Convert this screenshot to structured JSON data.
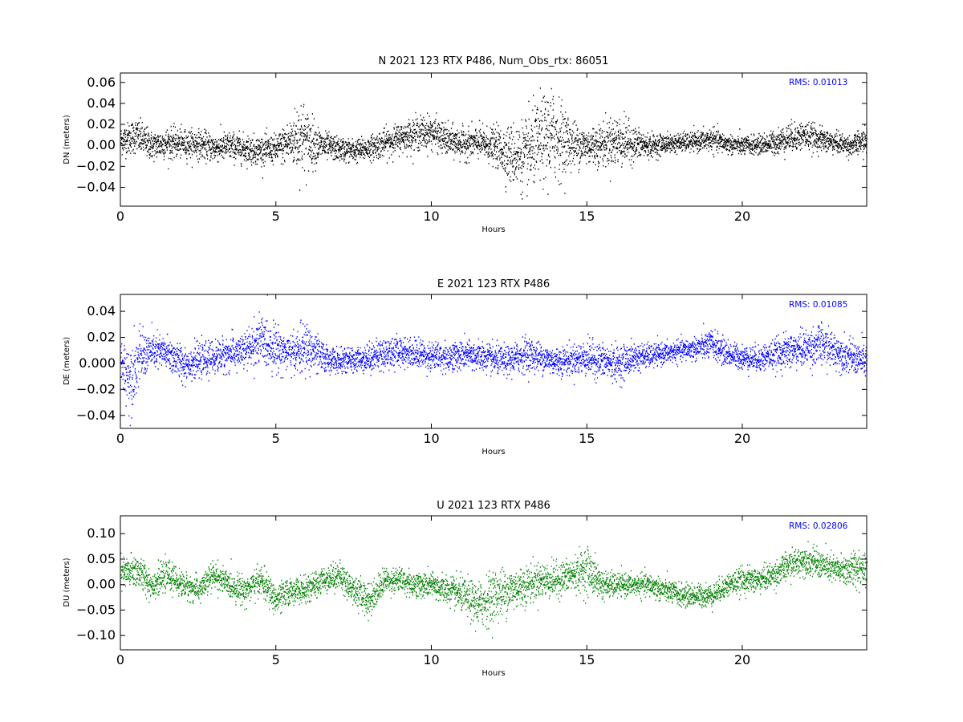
{
  "chart_data": [
    {
      "type": "scatter",
      "title": "N 2021 123 RTX  P486, Num_Obs_rtx: 86051",
      "xlabel": "Hours",
      "ylabel": "DN (meters)",
      "xlim": [
        0,
        24
      ],
      "ylim": [
        -0.058,
        0.069
      ],
      "x_ticks": [
        0,
        5,
        10,
        15,
        20
      ],
      "y_ticks": [
        -0.04,
        -0.02,
        0.0,
        0.02,
        0.04,
        0.06
      ],
      "y_tick_labels": [
        "−0.04",
        "−0.02",
        "0.00",
        "0.02",
        "0.04",
        "0.06"
      ],
      "annotation": "RMS:  0.01013",
      "annotation_color": "#0000ff",
      "color": "#000000",
      "grid": false,
      "series": [
        {
          "x": [
            0,
            0.5,
            1,
            1.5,
            2,
            2.5,
            3,
            3.5,
            4,
            4.5,
            5,
            5.5,
            5.8,
            6,
            6.5,
            7,
            7.5,
            8,
            8.5,
            9,
            9.5,
            10,
            10.5,
            11,
            11.5,
            12,
            12.5,
            13,
            13.5,
            13.9,
            14.5,
            15,
            15.5,
            16,
            16.5,
            17,
            17.5,
            18,
            18.5,
            19,
            19.5,
            20,
            20.5,
            21,
            21.5,
            22,
            22.5,
            23,
            23.5,
            24
          ],
          "center": [
            0.005,
            0.01,
            0.0,
            0.003,
            0.002,
            0.002,
            -0.002,
            0.0,
            -0.003,
            -0.004,
            -0.003,
            0.005,
            0.01,
            0.005,
            0.0,
            -0.003,
            -0.005,
            -0.002,
            0.003,
            0.008,
            0.012,
            0.013,
            0.005,
            0.002,
            0.003,
            0.0,
            -0.008,
            -0.01,
            0.005,
            0.01,
            0.002,
            0.0,
            0.002,
            0.005,
            0.002,
            0.0,
            0.002,
            0.003,
            0.004,
            0.006,
            0.002,
            0.0,
            0.001,
            0.003,
            0.008,
            0.01,
            0.006,
            0.003,
            0.0,
            0.006
          ],
          "spread": [
            0.012,
            0.015,
            0.012,
            0.013,
            0.012,
            0.012,
            0.012,
            0.012,
            0.012,
            0.012,
            0.012,
            0.02,
            0.035,
            0.025,
            0.012,
            0.01,
            0.01,
            0.01,
            0.012,
            0.012,
            0.014,
            0.014,
            0.013,
            0.013,
            0.013,
            0.015,
            0.025,
            0.03,
            0.035,
            0.04,
            0.02,
            0.016,
            0.018,
            0.022,
            0.015,
            0.01,
            0.008,
            0.008,
            0.008,
            0.01,
            0.008,
            0.008,
            0.008,
            0.01,
            0.012,
            0.012,
            0.01,
            0.009,
            0.008,
            0.012
          ]
        }
      ]
    },
    {
      "type": "scatter",
      "title": "E 2021 123 RTX  P486",
      "xlabel": "Hours",
      "ylabel": "DE (meters)",
      "xlim": [
        0,
        24
      ],
      "ylim": [
        -0.05,
        0.053
      ],
      "x_ticks": [
        0,
        5,
        10,
        15,
        20
      ],
      "y_ticks": [
        -0.04,
        -0.02,
        0.0,
        0.02,
        0.04
      ],
      "y_tick_labels": [
        "−0.04",
        "−0.02",
        "0.000",
        "0.02",
        "0.04"
      ],
      "annotation": "RMS:  0.01085",
      "annotation_color": "#0000ff",
      "color": "#0000ff",
      "grid": false,
      "series": [
        {
          "x": [
            0,
            0.3,
            0.6,
            1,
            1.5,
            2,
            2.5,
            3,
            3.5,
            4,
            4.5,
            5,
            5.5,
            6,
            6.5,
            7,
            7.5,
            8,
            8.5,
            9,
            9.5,
            10,
            10.5,
            11,
            11.5,
            12,
            12.5,
            13,
            13.5,
            14,
            14.5,
            15,
            15.5,
            16,
            16.5,
            17,
            17.5,
            18,
            18.5,
            19,
            19.5,
            20,
            20.5,
            21,
            21.5,
            22,
            22.5,
            23,
            23.5,
            24
          ],
          "center": [
            0.0,
            -0.01,
            0.005,
            0.01,
            0.008,
            0.0,
            0.002,
            0.005,
            0.008,
            0.01,
            0.018,
            0.012,
            0.008,
            0.012,
            0.005,
            0.002,
            0.003,
            0.005,
            0.008,
            0.01,
            0.008,
            0.006,
            0.005,
            0.007,
            0.006,
            0.003,
            0.002,
            0.008,
            0.005,
            0.002,
            0.003,
            0.005,
            0.002,
            0.0,
            0.005,
            0.006,
            0.008,
            0.01,
            0.012,
            0.015,
            0.008,
            0.005,
            0.004,
            0.007,
            0.01,
            0.012,
            0.015,
            0.01,
            0.005,
            0.002
          ],
          "spread": [
            0.015,
            0.025,
            0.018,
            0.012,
            0.012,
            0.012,
            0.011,
            0.011,
            0.012,
            0.012,
            0.018,
            0.015,
            0.012,
            0.018,
            0.01,
            0.008,
            0.008,
            0.01,
            0.011,
            0.01,
            0.01,
            0.01,
            0.01,
            0.01,
            0.01,
            0.01,
            0.01,
            0.012,
            0.01,
            0.01,
            0.01,
            0.012,
            0.012,
            0.012,
            0.01,
            0.008,
            0.007,
            0.007,
            0.008,
            0.01,
            0.009,
            0.008,
            0.009,
            0.01,
            0.012,
            0.012,
            0.014,
            0.012,
            0.011,
            0.012
          ]
        }
      ]
    },
    {
      "type": "scatter",
      "title": "U 2021 123 RTX  P486",
      "xlabel": "Hours",
      "ylabel": "DU (meters)",
      "xlim": [
        0,
        24
      ],
      "ylim": [
        -0.128,
        0.135
      ],
      "x_ticks": [
        0,
        5,
        10,
        15,
        20
      ],
      "y_ticks": [
        -0.1,
        -0.05,
        0.0,
        0.05,
        0.1
      ],
      "y_tick_labels": [
        "−0.10",
        "−0.05",
        "0.00",
        "0.05",
        "0.10"
      ],
      "annotation": "RMS:  0.02806",
      "annotation_color": "#0000ff",
      "color": "#008000",
      "grid": false,
      "series": [
        {
          "x": [
            0,
            0.5,
            1,
            1.5,
            2,
            2.5,
            3,
            3.5,
            4,
            4.5,
            5,
            5.5,
            6,
            6.5,
            7,
            7.5,
            8,
            8.5,
            9,
            9.5,
            10,
            10.5,
            11,
            11.5,
            12,
            12.5,
            13,
            13.5,
            14,
            14.5,
            15,
            15.5,
            16,
            16.5,
            17,
            17.5,
            18,
            18.5,
            19,
            19.5,
            20,
            20.5,
            21,
            21.5,
            22,
            22.5,
            23,
            23.5,
            24
          ],
          "center": [
            0.02,
            0.03,
            0.0,
            0.02,
            0.0,
            -0.01,
            0.02,
            0.0,
            -0.01,
            0.01,
            -0.03,
            -0.01,
            -0.01,
            0.01,
            0.02,
            -0.01,
            -0.03,
            0.01,
            0.01,
            0.0,
            0.0,
            -0.01,
            -0.02,
            -0.04,
            -0.02,
            -0.01,
            0.0,
            0.01,
            0.01,
            0.02,
            0.03,
            0.0,
            0.0,
            0.0,
            0.0,
            -0.01,
            -0.02,
            -0.02,
            -0.02,
            0.0,
            0.01,
            0.01,
            0.02,
            0.04,
            0.05,
            0.04,
            0.03,
            0.03,
            0.04
          ],
          "spread": [
            0.03,
            0.03,
            0.025,
            0.025,
            0.022,
            0.022,
            0.025,
            0.022,
            0.025,
            0.025,
            0.028,
            0.022,
            0.022,
            0.022,
            0.025,
            0.025,
            0.03,
            0.022,
            0.022,
            0.022,
            0.022,
            0.025,
            0.03,
            0.04,
            0.045,
            0.04,
            0.035,
            0.03,
            0.03,
            0.03,
            0.04,
            0.025,
            0.02,
            0.018,
            0.02,
            0.02,
            0.02,
            0.02,
            0.02,
            0.02,
            0.022,
            0.022,
            0.022,
            0.025,
            0.025,
            0.025,
            0.025,
            0.03,
            0.035
          ]
        }
      ]
    }
  ]
}
